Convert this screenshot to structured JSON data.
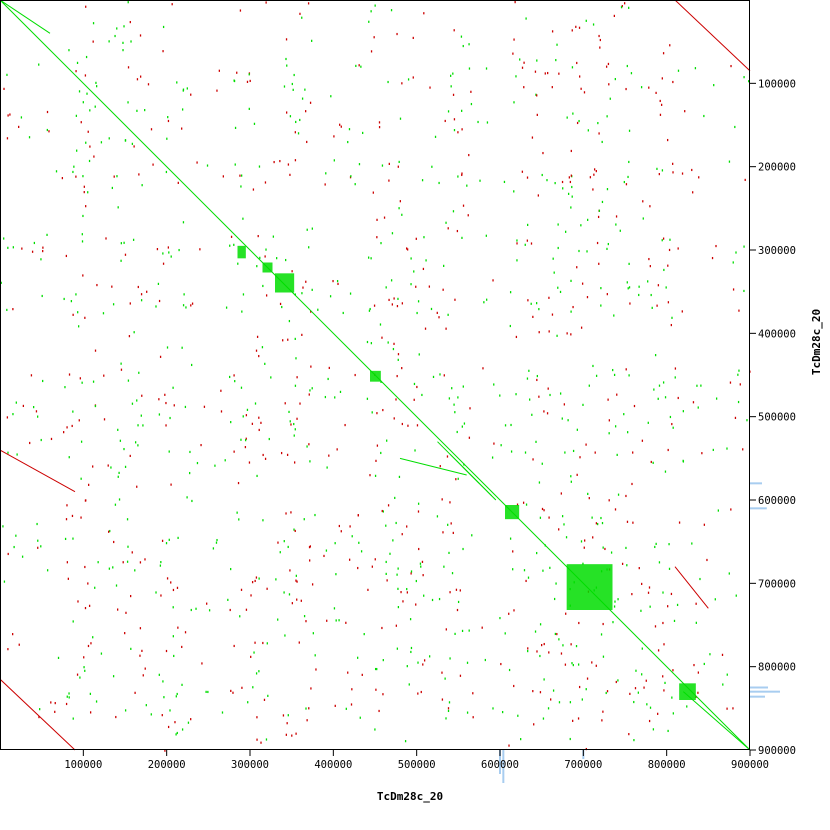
{
  "chart_data": {
    "type": "scatter",
    "xlabel": "TcDm28c_20",
    "ylabel": "TcDm28c_20",
    "xlim": [
      0,
      900000
    ],
    "ylim": [
      0,
      900000
    ],
    "x_ticks": [
      {
        "value": 100000,
        "label": "100000"
      },
      {
        "value": 200000,
        "label": "200000"
      },
      {
        "value": 300000,
        "label": "300000"
      },
      {
        "value": 400000,
        "label": "400000"
      },
      {
        "value": 500000,
        "label": "500000"
      },
      {
        "value": 600000,
        "label": "600000"
      },
      {
        "value": 700000,
        "label": "700000"
      },
      {
        "value": 800000,
        "label": "800000"
      },
      {
        "value": 900000,
        "label": "900000"
      }
    ],
    "y_ticks": [
      {
        "value": 100000,
        "label": "100000"
      },
      {
        "value": 200000,
        "label": "200000"
      },
      {
        "value": 300000,
        "label": "300000"
      },
      {
        "value": 400000,
        "label": "400000"
      },
      {
        "value": 500000,
        "label": "500000"
      },
      {
        "value": 600000,
        "label": "600000"
      },
      {
        "value": 700000,
        "label": "700000"
      },
      {
        "value": 800000,
        "label": "800000"
      },
      {
        "value": 900000,
        "label": "900000"
      }
    ],
    "colors": {
      "forward": "#00dd00",
      "reverse": "#cc0000",
      "coverage": "#a8cdf0"
    },
    "series": [
      {
        "kind": "forward",
        "diagonal": [
          0,
          900000
        ],
        "blocks": [
          {
            "x": [
              315000,
              327000
            ],
            "y": [
              315000,
              327000
            ]
          },
          {
            "x": [
              330000,
              353000
            ],
            "y": [
              328000,
              351000
            ]
          },
          {
            "x": [
              444000,
              457000
            ],
            "y": [
              445000,
              458000
            ]
          },
          {
            "x": [
              606000,
              623000
            ],
            "y": [
              606000,
              623000
            ]
          },
          {
            "x": [
              680000,
              735000
            ],
            "y": [
              677000,
              732000
            ]
          },
          {
            "x": [
              815000,
              835000
            ],
            "y": [
              820000,
              840000
            ]
          },
          {
            "x": [
              285000,
              295000
            ],
            "y": [
              295000,
              310000
            ]
          }
        ],
        "segments": [
          {
            "x": [
              0,
              60000
            ],
            "y": [
              0,
              40000
            ]
          },
          {
            "x": [
              480000,
              560000
            ],
            "y": [
              550000,
              570000
            ]
          },
          {
            "x": [
              525000,
              575000
            ],
            "y": [
              530000,
              580000
            ]
          },
          {
            "x": [
              540000,
              590000
            ],
            "y": [
              545000,
              595000
            ]
          },
          {
            "x": [
              555000,
              595000
            ],
            "y": [
              560000,
              600000
            ]
          },
          {
            "x": [
              820000,
              900000
            ],
            "y": [
              830000,
              900000
            ]
          }
        ]
      },
      {
        "kind": "reverse",
        "segments": [
          {
            "x": [
              0,
              90000
            ],
            "y": [
              815000,
              900000
            ]
          },
          {
            "x": [
              810000,
              900000
            ],
            "y": [
              0,
              85000
            ]
          },
          {
            "x": [
              0,
              90000
            ],
            "y": [
              540000,
              590000
            ]
          },
          {
            "x": [
              810000,
              850000
            ],
            "y": [
              680000,
              730000
            ]
          }
        ]
      }
    ],
    "coverage_y": [
      {
        "y": 580000,
        "value": 20000
      },
      {
        "y": 610000,
        "value": 28000
      },
      {
        "y": 825000,
        "value": 30000
      },
      {
        "y": 830000,
        "value": 50000
      },
      {
        "y": 836000,
        "value": 25000
      }
    ],
    "coverage_x": [
      {
        "x": 600000,
        "value": 40000
      },
      {
        "x": 604000,
        "value": 55000
      },
      {
        "x": 700000,
        "value": 15000
      }
    ]
  }
}
